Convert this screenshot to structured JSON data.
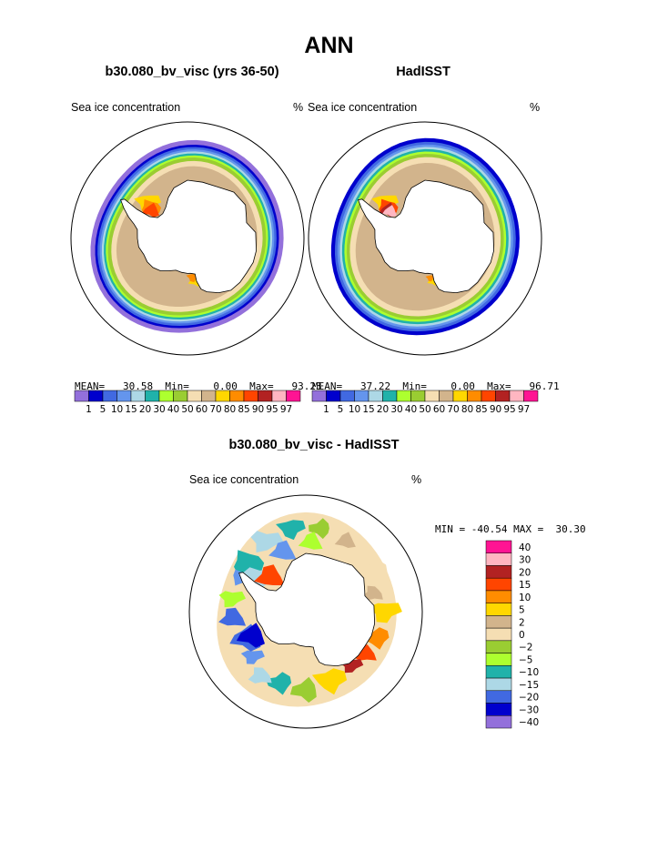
{
  "figure": {
    "title": "ANN"
  },
  "chart_data": [
    {
      "type": "heatmap",
      "projection": "south-polar-stereographic",
      "title": "b30.080_bv_visc (yrs 36-50)",
      "variable_label": "Sea ice concentration",
      "units": "%",
      "stats": {
        "mean_label": "MEAN=",
        "mean": "30.58",
        "min_label": "Min=",
        "min": "0.00",
        "max_label": "Max=",
        "max": "93.23"
      },
      "zones": [
        {
          "level": 0,
          "color": "#9370DB",
          "ice_lat": -57.0
        },
        {
          "level": 1,
          "color": "#0000CD",
          "ice_lat": -58.6
        },
        {
          "level": 2,
          "color": "#4169E1",
          "ice_lat": -59.4
        },
        {
          "level": 3,
          "color": "#6495ED",
          "ice_lat": -60.2
        },
        {
          "level": 4,
          "color": "#ADD8E6",
          "ice_lat": -60.9
        },
        {
          "level": 5,
          "color": "#20B2AA",
          "ice_lat": -61.6
        },
        {
          "level": 6,
          "color": "#ADFF2F",
          "ice_lat": -62.3
        },
        {
          "level": 7,
          "color": "#9ACD32",
          "ice_lat": -63.0
        },
        {
          "level": 8,
          "color": "#F5DEB3",
          "ice_lat": -64.2
        },
        {
          "level": 9,
          "color": "#D2B48C",
          "ice_lat": -66.0
        }
      ],
      "hotspots": [
        {
          "lon": -48,
          "lat": -71.5,
          "color": "#FFD700"
        },
        {
          "lon": -50,
          "lat": -73.5,
          "color": "#FF8C00"
        },
        {
          "lon": -52,
          "lat": -74.5,
          "color": "#FF4500"
        },
        {
          "lon": 168,
          "lat": -75.0,
          "color": "#FFD700"
        },
        {
          "lon": 172,
          "lat": -76.5,
          "color": "#FF8C00"
        }
      ],
      "colorbar": {
        "colors": [
          "#9370DB",
          "#0000CD",
          "#4169E1",
          "#6495ED",
          "#ADD8E6",
          "#20B2AA",
          "#ADFF2F",
          "#9ACD32",
          "#F5DEB3",
          "#D2B48C",
          "#FFD700",
          "#FF8C00",
          "#FF4500",
          "#B22222",
          "#FFB6C1",
          "#FF1493"
        ],
        "levels": [
          "1",
          "5",
          "10",
          "15",
          "20",
          "30",
          "40",
          "50",
          "60",
          "70",
          "80",
          "85",
          "90",
          "95",
          "97"
        ]
      }
    },
    {
      "type": "heatmap",
      "projection": "south-polar-stereographic",
      "title": "HadISST",
      "variable_label": "Sea ice concentration",
      "units": "%",
      "stats": {
        "mean_label": "MEAN=",
        "mean": "37.22",
        "min_label": "Min=",
        "min": "0.00",
        "max_label": "Max=",
        "max": "96.71"
      },
      "zones": [
        {
          "level": 1,
          "color": "#0000CD",
          "ice_lat": -57.0
        },
        {
          "level": 2,
          "color": "#4169E1",
          "ice_lat": -58.3
        },
        {
          "level": 3,
          "color": "#6495ED",
          "ice_lat": -59.2
        },
        {
          "level": 4,
          "color": "#ADD8E6",
          "ice_lat": -60.0
        },
        {
          "level": 5,
          "color": "#20B2AA",
          "ice_lat": -60.8
        },
        {
          "level": 6,
          "color": "#ADFF2F",
          "ice_lat": -61.6
        },
        {
          "level": 7,
          "color": "#9ACD32",
          "ice_lat": -62.4
        },
        {
          "level": 8,
          "color": "#F5DEB3",
          "ice_lat": -63.5
        },
        {
          "level": 9,
          "color": "#D2B48C",
          "ice_lat": -65.5
        }
      ],
      "hotspots": [
        {
          "lon": -48,
          "lat": -71.5,
          "color": "#FFD700"
        },
        {
          "lon": -50,
          "lat": -73.3,
          "color": "#FF4500"
        },
        {
          "lon": -52,
          "lat": -74.3,
          "color": "#B22222"
        },
        {
          "lon": -52,
          "lat": -75.0,
          "color": "#FFB6C1"
        },
        {
          "lon": 168,
          "lat": -75.0,
          "color": "#FFD700"
        },
        {
          "lon": 172,
          "lat": -76.3,
          "color": "#FF8C00"
        }
      ],
      "colorbar": {
        "colors": [
          "#9370DB",
          "#0000CD",
          "#4169E1",
          "#6495ED",
          "#ADD8E6",
          "#20B2AA",
          "#ADFF2F",
          "#9ACD32",
          "#F5DEB3",
          "#D2B48C",
          "#FFD700",
          "#FF8C00",
          "#FF4500",
          "#B22222",
          "#FFB6C1",
          "#FF1493"
        ],
        "levels": [
          "1",
          "5",
          "10",
          "15",
          "20",
          "30",
          "40",
          "50",
          "60",
          "70",
          "80",
          "85",
          "90",
          "95",
          "97"
        ]
      }
    },
    {
      "type": "heatmap",
      "projection": "south-polar-stereographic",
      "title": "b30.080_bv_visc - HadISST",
      "variable_label": "Sea ice concentration",
      "units": "%",
      "stats": {
        "min_label": "MIN =",
        "min": "-40.54",
        "max_label": "MAX =",
        "max": "30.30"
      },
      "patches": [
        {
          "lon": -50,
          "lat": -64.0,
          "color": "#20B2AA"
        },
        {
          "lon": -30,
          "lat": -62.0,
          "color": "#ADD8E6"
        },
        {
          "lon": -10,
          "lat": -61.0,
          "color": "#20B2AA"
        },
        {
          "lon": 10,
          "lat": -61.0,
          "color": "#9ACD32"
        },
        {
          "lon": 30,
          "lat": -62.0,
          "color": "#D2B48C"
        },
        {
          "lon": 60,
          "lat": -63.0,
          "color": "#F5DEB3"
        },
        {
          "lon": 90,
          "lat": -63.0,
          "color": "#FFD700"
        },
        {
          "lon": 110,
          "lat": -64.0,
          "color": "#FF8C00"
        },
        {
          "lon": 125,
          "lat": -65.0,
          "color": "#FF4500"
        },
        {
          "lon": 140,
          "lat": -66.0,
          "color": "#B22222"
        },
        {
          "lon": 160,
          "lat": -65.0,
          "color": "#FFD700"
        },
        {
          "lon": 180,
          "lat": -63.0,
          "color": "#9ACD32"
        },
        {
          "lon": -160,
          "lat": -64.0,
          "color": "#20B2AA"
        },
        {
          "lon": -145,
          "lat": -63.0,
          "color": "#ADD8E6"
        },
        {
          "lon": -130,
          "lat": -66.0,
          "color": "#6495ED"
        },
        {
          "lon": -115,
          "lat": -68.0,
          "color": "#4169E1"
        },
        {
          "lon": -115,
          "lat": -70.0,
          "color": "#0000CD"
        },
        {
          "lon": -95,
          "lat": -65.0,
          "color": "#4169E1"
        },
        {
          "lon": -80,
          "lat": -64.0,
          "color": "#ADFF2F"
        },
        {
          "lon": -62,
          "lat": -65.0,
          "color": "#6495ED"
        },
        {
          "lon": -55,
          "lat": -70.0,
          "color": "#ADD8E6"
        },
        {
          "lon": -45,
          "lat": -73.0,
          "color": "#FF4500"
        },
        {
          "lon": -20,
          "lat": -68.0,
          "color": "#6495ED"
        },
        {
          "lon": 5,
          "lat": -66.0,
          "color": "#ADFF2F"
        },
        {
          "lon": 75,
          "lat": -66.0,
          "color": "#D2B48C"
        }
      ],
      "colorbar": {
        "colors": [
          "#FF1493",
          "#FFB6C1",
          "#B22222",
          "#FF4500",
          "#FF8C00",
          "#FFD700",
          "#D2B48C",
          "#F5DEB3",
          "#9ACD32",
          "#ADFF2F",
          "#20B2AA",
          "#ADD8E6",
          "#4169E1",
          "#0000CD",
          "#9370DB"
        ],
        "levels": [
          "40",
          "30",
          "20",
          "15",
          "10",
          "5",
          "2",
          "0",
          "−2",
          "−5",
          "−10",
          "−15",
          "−20",
          "−30",
          "−40"
        ]
      }
    }
  ]
}
